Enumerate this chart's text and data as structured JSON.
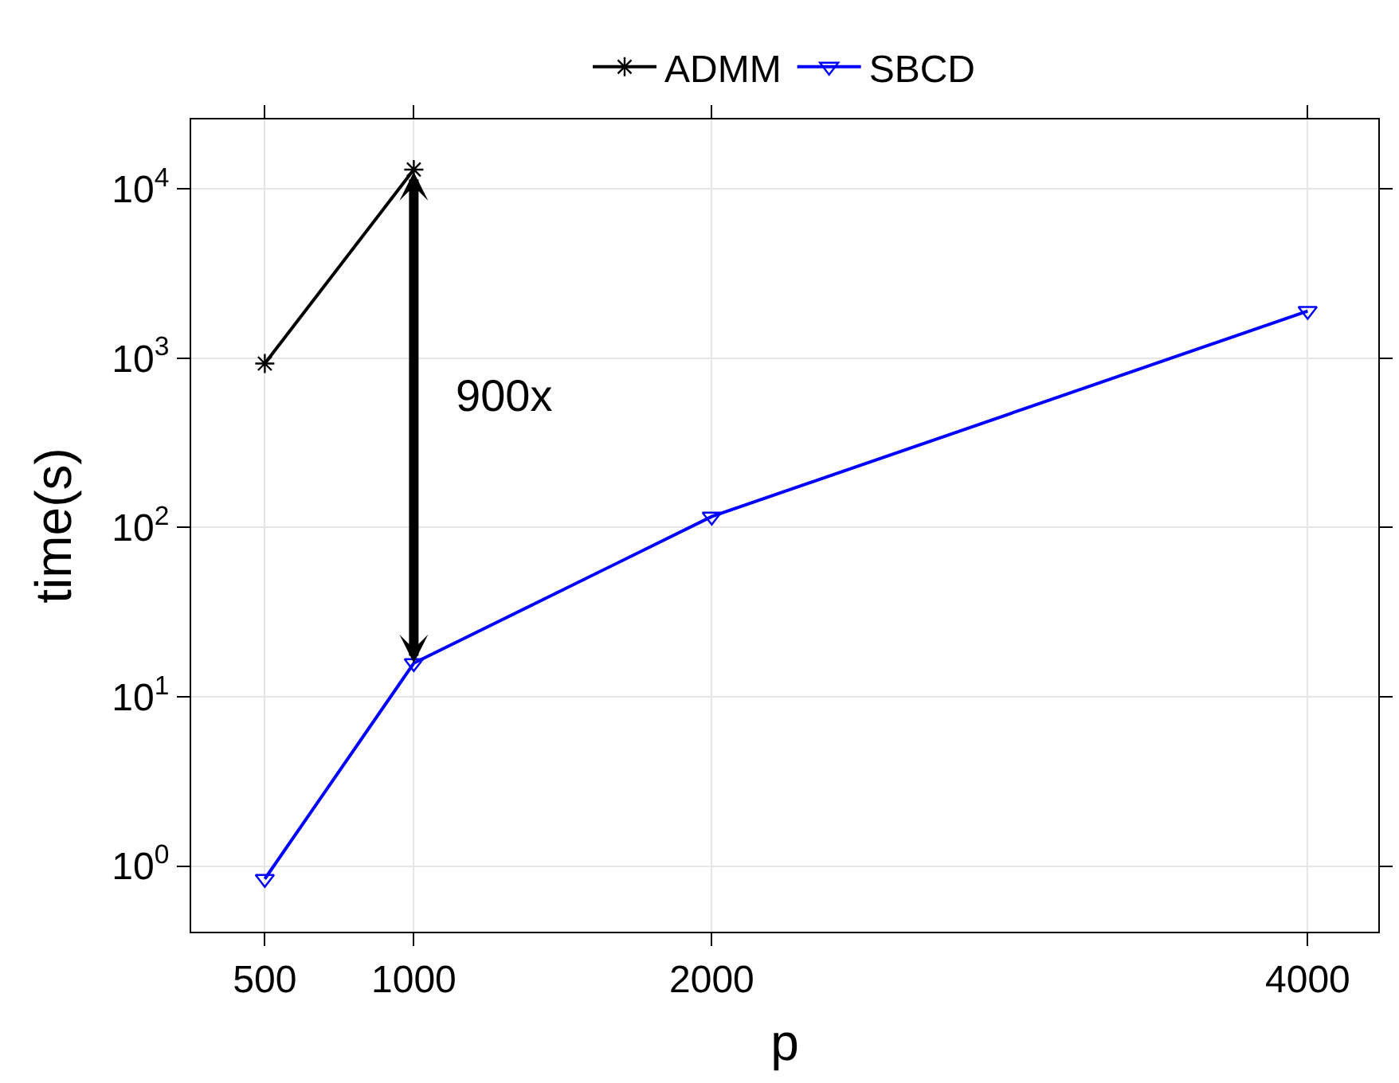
{
  "chart_data": {
    "type": "line",
    "xlabel": "p",
    "ylabel": "time(s)",
    "log": "y",
    "xlim": [
      253,
      4237
    ],
    "xticks": [
      500,
      1000,
      2000,
      4000
    ],
    "ylim": [
      0.41,
      25700
    ],
    "yticks": [
      {
        "value": 1,
        "label": "10$^{0}$"
      },
      {
        "value": 10,
        "label": "10$^{1}$"
      },
      {
        "value": 100,
        "label": "10$^{2}$"
      },
      {
        "value": 1000,
        "label": "10$^{3}$"
      },
      {
        "value": 10000,
        "label": "10$^{4}$"
      }
    ],
    "grid": true,
    "legend": "top",
    "series": [
      {
        "name": "ADMM",
        "color": "#000000",
        "marker": "cross",
        "x": [
          500,
          1000
        ],
        "values": [
          930,
          13000
        ]
      },
      {
        "name": "SBCD",
        "color": "#0000ff",
        "marker": "triangle",
        "x": [
          500,
          1000,
          2000,
          4000
        ],
        "values": [
          0.84,
          15.8,
          116,
          1900
        ]
      }
    ],
    "annotations": [
      "900x"
    ]
  }
}
